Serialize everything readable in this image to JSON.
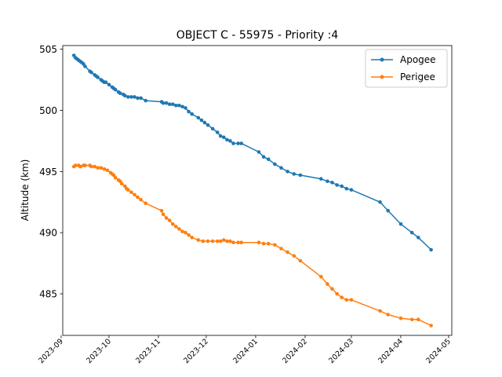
{
  "chart_data": {
    "type": "line",
    "title": "OBJECT C - 55975 - Priority :4",
    "xlabel": "",
    "ylabel": "Altitude (km)",
    "x_axis": {
      "type": "date",
      "range": [
        "2023-09-02",
        "2024-05-03"
      ],
      "ticks": [
        "2023-09-01",
        "2023-10-01",
        "2023-11-01",
        "2023-12-01",
        "2024-01-01",
        "2024-02-01",
        "2024-03-01",
        "2024-04-01",
        "2024-05-01"
      ],
      "tick_labels": [
        "2023-09",
        "2023-10",
        "2023-11",
        "2023-12",
        "2024-01",
        "2024-02",
        "2024-03",
        "2024-04",
        "2024-05"
      ]
    },
    "y_axis": {
      "range": [
        481.6,
        505.3
      ],
      "ticks": [
        485,
        490,
        495,
        500,
        505
      ],
      "tick_labels": [
        "485",
        "490",
        "495",
        "500",
        "505"
      ]
    },
    "grid": false,
    "legend": "top-right",
    "series": [
      {
        "name": "Apogee",
        "color": "#1f77b4",
        "marker": "circle",
        "x": [
          "2023-09-09",
          "2023-09-10",
          "2023-09-11",
          "2023-09-12",
          "2023-09-13",
          "2023-09-14",
          "2023-09-15",
          "2023-09-16",
          "2023-09-19",
          "2023-09-20",
          "2023-09-22",
          "2023-09-23",
          "2023-09-24",
          "2023-09-26",
          "2023-09-27",
          "2023-09-28",
          "2023-09-29",
          "2023-10-01",
          "2023-10-03",
          "2023-10-04",
          "2023-10-05",
          "2023-10-07",
          "2023-10-08",
          "2023-10-10",
          "2023-10-11",
          "2023-10-13",
          "2023-10-15",
          "2023-10-17",
          "2023-10-19",
          "2023-10-21",
          "2023-10-24",
          "2023-11-03",
          "2023-11-04",
          "2023-11-06",
          "2023-11-08",
          "2023-11-10",
          "2023-11-12",
          "2023-11-14",
          "2023-11-16",
          "2023-11-18",
          "2023-11-20",
          "2023-11-22",
          "2023-11-26",
          "2023-11-28",
          "2023-11-30",
          "2023-12-02",
          "2023-12-05",
          "2023-12-08",
          "2023-12-10",
          "2023-12-12",
          "2023-12-14",
          "2023-12-16",
          "2023-12-18",
          "2023-12-21",
          "2023-12-23",
          "2024-01-03",
          "2024-01-06",
          "2024-01-09",
          "2024-01-13",
          "2024-01-17",
          "2024-01-21",
          "2024-01-25",
          "2024-01-29",
          "2024-02-11",
          "2024-02-15",
          "2024-02-18",
          "2024-02-21",
          "2024-02-24",
          "2024-02-27",
          "2024-03-01",
          "2024-03-19",
          "2024-03-24",
          "2024-04-01",
          "2024-04-08",
          "2024-04-12",
          "2024-04-20"
        ],
        "y": [
          504.5,
          504.3,
          504.2,
          504.1,
          504.0,
          503.9,
          503.8,
          503.6,
          503.2,
          503.1,
          502.9,
          502.8,
          502.7,
          502.5,
          502.4,
          502.3,
          502.3,
          502.1,
          501.9,
          501.8,
          501.7,
          501.5,
          501.4,
          501.3,
          501.2,
          501.1,
          501.1,
          501.1,
          501.0,
          501.0,
          500.8,
          500.7,
          500.6,
          500.6,
          500.5,
          500.5,
          500.4,
          500.4,
          500.3,
          500.2,
          499.9,
          499.7,
          499.4,
          499.2,
          499.0,
          498.8,
          498.5,
          498.2,
          497.9,
          497.8,
          497.6,
          497.5,
          497.3,
          497.3,
          497.3,
          496.6,
          496.2,
          496.0,
          495.6,
          495.3,
          495.0,
          494.8,
          494.7,
          494.4,
          494.2,
          494.1,
          493.9,
          493.8,
          493.6,
          493.5,
          492.5,
          491.8,
          490.7,
          490.0,
          489.6,
          488.6
        ]
      },
      {
        "name": "Perigee",
        "color": "#ff7f0e",
        "marker": "circle",
        "x": [
          "2023-09-09",
          "2023-09-10",
          "2023-09-12",
          "2023-09-13",
          "2023-09-15",
          "2023-09-16",
          "2023-09-19",
          "2023-09-20",
          "2023-09-22",
          "2023-09-24",
          "2023-09-26",
          "2023-09-28",
          "2023-09-30",
          "2023-10-02",
          "2023-10-03",
          "2023-10-04",
          "2023-10-05",
          "2023-10-07",
          "2023-10-08",
          "2023-10-09",
          "2023-10-11",
          "2023-10-12",
          "2023-10-13",
          "2023-10-15",
          "2023-10-17",
          "2023-10-19",
          "2023-10-21",
          "2023-10-24",
          "2023-11-03",
          "2023-11-04",
          "2023-11-06",
          "2023-11-08",
          "2023-11-10",
          "2023-11-12",
          "2023-11-14",
          "2023-11-16",
          "2023-11-18",
          "2023-11-20",
          "2023-11-22",
          "2023-11-26",
          "2023-11-29",
          "2023-12-02",
          "2023-12-05",
          "2023-12-08",
          "2023-12-10",
          "2023-12-12",
          "2023-12-14",
          "2023-12-16",
          "2023-12-18",
          "2023-12-21",
          "2023-12-23",
          "2024-01-03",
          "2024-01-06",
          "2024-01-09",
          "2024-01-13",
          "2024-01-17",
          "2024-01-21",
          "2024-01-25",
          "2024-01-29",
          "2024-02-11",
          "2024-02-15",
          "2024-02-18",
          "2024-02-21",
          "2024-02-24",
          "2024-02-27",
          "2024-03-01",
          "2024-03-19",
          "2024-03-24",
          "2024-04-01",
          "2024-04-08",
          "2024-04-12",
          "2024-04-20"
        ],
        "y": [
          495.4,
          495.5,
          495.5,
          495.4,
          495.5,
          495.5,
          495.5,
          495.4,
          495.4,
          495.3,
          495.3,
          495.2,
          495.1,
          494.9,
          494.8,
          494.7,
          494.5,
          494.3,
          494.2,
          494.0,
          493.8,
          493.6,
          493.5,
          493.3,
          493.1,
          492.9,
          492.7,
          492.4,
          491.8,
          491.5,
          491.2,
          491.0,
          490.7,
          490.5,
          490.3,
          490.1,
          490.0,
          489.8,
          489.6,
          489.4,
          489.3,
          489.3,
          489.3,
          489.3,
          489.3,
          489.4,
          489.3,
          489.3,
          489.2,
          489.2,
          489.2,
          489.2,
          489.1,
          489.1,
          489.0,
          488.7,
          488.4,
          488.1,
          487.7,
          486.4,
          485.8,
          485.4,
          485.0,
          484.7,
          484.5,
          484.5,
          483.6,
          483.3,
          483.0,
          482.9,
          482.9,
          482.4
        ]
      }
    ]
  }
}
